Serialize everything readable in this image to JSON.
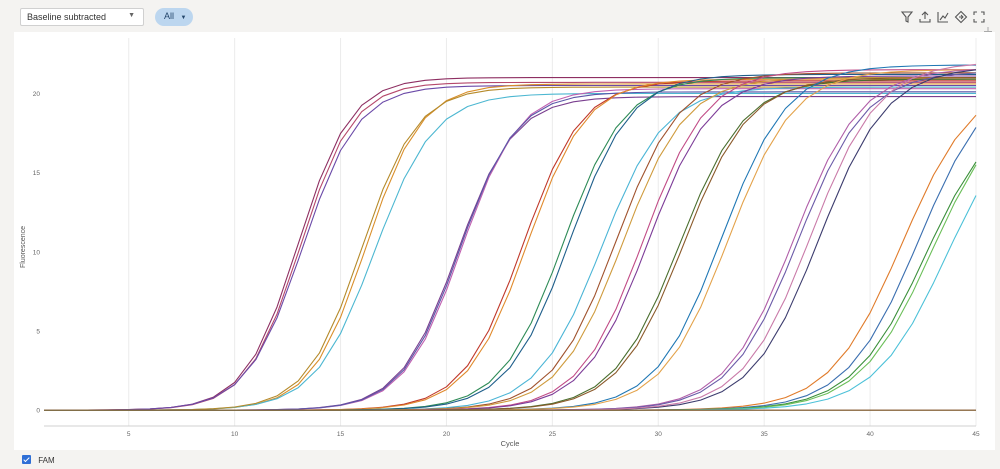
{
  "toolbar": {
    "mode_select_value": "Baseline subtracted",
    "filter_value": "All",
    "icons": [
      "filter-icon",
      "export-icon",
      "chart-settings-icon",
      "reset-icon",
      "fullscreen-icon"
    ]
  },
  "side_toolbar": {
    "icons": [
      "pan-icon",
      "zoom-box-icon",
      "zoom-select-icon",
      "move-icon",
      "zoom-in-icon",
      "clear-icon"
    ]
  },
  "legend": {
    "label": "FAM",
    "checked": true,
    "color": "#2f6fd6"
  },
  "chart_data": {
    "type": "line",
    "title": "",
    "xlabel": "Cycle",
    "ylabel": "Fluorescence",
    "xlim": [
      1,
      45
    ],
    "ylim": [
      -1,
      23.5
    ],
    "x_ticks": [
      5,
      10,
      15,
      20,
      25,
      30,
      35,
      40,
      45
    ],
    "y_ticks": [
      0,
      5,
      10,
      15,
      20
    ],
    "grid": "vertical",
    "x": [
      1,
      2,
      3,
      4,
      5,
      6,
      7,
      8,
      9,
      10,
      11,
      12,
      13,
      14,
      15,
      16,
      17,
      18,
      19,
      20,
      21,
      22,
      23,
      24,
      25,
      26,
      27,
      28,
      29,
      30,
      31,
      32,
      33,
      34,
      35,
      36,
      37,
      38,
      39,
      40,
      41,
      42,
      43,
      44,
      45
    ],
    "curve_model": "sigmoid: y = plateau / (1 + exp(-(cycle - midpoint) / slope))",
    "series": [
      {
        "color": "#8e2f62",
        "plateau": 21.0,
        "midpoint": 13.0,
        "slope": 1.25
      },
      {
        "color": "#b5486b",
        "plateau": 20.7,
        "midpoint": 13.1,
        "slope": 1.25
      },
      {
        "color": "#6b4aa8",
        "plateau": 20.5,
        "midpoint": 13.2,
        "slope": 1.3
      },
      {
        "color": "#d98f2b",
        "plateau": 20.6,
        "midpoint": 16.2,
        "slope": 1.3
      },
      {
        "color": "#4cb7d1",
        "plateau": 20.0,
        "midpoint": 16.6,
        "slope": 1.4
      },
      {
        "color": "#b58a2a",
        "plateau": 20.4,
        "midpoint": 16.0,
        "slope": 1.3
      },
      {
        "color": "#7a3f8f",
        "plateau": 19.8,
        "midpoint": 20.5,
        "slope": 1.35
      },
      {
        "color": "#c060b0",
        "plateau": 20.3,
        "midpoint": 20.7,
        "slope": 1.35
      },
      {
        "color": "#5b56a8",
        "plateau": 20.1,
        "midpoint": 20.6,
        "slope": 1.35
      },
      {
        "color": "#c0392b",
        "plateau": 20.8,
        "midpoint": 23.6,
        "slope": 1.4
      },
      {
        "color": "#e08a2c",
        "plateau": 20.9,
        "midpoint": 23.8,
        "slope": 1.4
      },
      {
        "color": "#2e8b57",
        "plateau": 21.0,
        "midpoint": 25.5,
        "slope": 1.45
      },
      {
        "color": "#1f5f8b",
        "plateau": 21.2,
        "midpoint": 25.8,
        "slope": 1.45
      },
      {
        "color": "#4bb5d6",
        "plateau": 20.4,
        "midpoint": 27.3,
        "slope": 1.5
      },
      {
        "color": "#a0522d",
        "plateau": 21.3,
        "midpoint": 28.0,
        "slope": 1.5
      },
      {
        "color": "#cf9b3d",
        "plateau": 21.0,
        "midpoint": 28.3,
        "slope": 1.5
      },
      {
        "color": "#c14b86",
        "plateau": 21.5,
        "midpoint": 29.3,
        "slope": 1.5
      },
      {
        "color": "#7d3c98",
        "plateau": 21.1,
        "midpoint": 29.5,
        "slope": 1.5
      },
      {
        "color": "#4a6e2e",
        "plateau": 20.9,
        "midpoint": 31.0,
        "slope": 1.55
      },
      {
        "color": "#8b5a2b",
        "plateau": 21.0,
        "midpoint": 31.2,
        "slope": 1.55
      },
      {
        "color": "#1f77b4",
        "plateau": 21.8,
        "midpoint": 33.0,
        "slope": 1.55
      },
      {
        "color": "#e3a24a",
        "plateau": 21.5,
        "midpoint": 33.3,
        "slope": 1.55
      },
      {
        "color": "#b05ea8",
        "plateau": 21.6,
        "midpoint": 36.4,
        "slope": 1.6
      },
      {
        "color": "#6b5ba8",
        "plateau": 21.4,
        "midpoint": 36.6,
        "slope": 1.6
      },
      {
        "color": "#3c3c6e",
        "plateau": 21.7,
        "midpoint": 37.6,
        "slope": 1.6
      },
      {
        "color": "#c97aa8",
        "plateau": 22.0,
        "midpoint": 37.2,
        "slope": 1.6
      },
      {
        "color": "#e07b2a",
        "plateau": 21.0,
        "midpoint": 41.5,
        "slope": 1.7
      },
      {
        "color": "#3b6fb0",
        "plateau": 21.5,
        "midpoint": 42.3,
        "slope": 1.7
      },
      {
        "color": "#3a8f3a",
        "plateau": 19.5,
        "midpoint": 42.6,
        "slope": 1.7
      },
      {
        "color": "#6bbf59",
        "plateau": 20.0,
        "midpoint": 42.9,
        "slope": 1.7
      },
      {
        "color": "#4cc1d8",
        "plateau": 19.5,
        "midpoint": 43.6,
        "slope": 1.7
      },
      {
        "color": "#d24a4a",
        "plateau": 0.0,
        "midpoint": 60,
        "slope": 2
      },
      {
        "color": "#7b6a3a",
        "plateau": 0.0,
        "midpoint": 60,
        "slope": 2
      }
    ]
  }
}
